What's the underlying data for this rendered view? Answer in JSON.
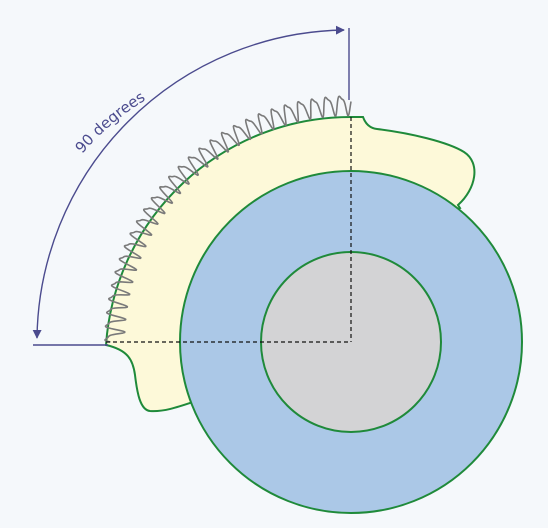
{
  "angle_label": "90 degrees",
  "colors": {
    "background": "#f5f8fb",
    "outline": "#1f8a3a",
    "sector_fill": "#fdf9d9",
    "outer_disc_fill": "#abc8e7",
    "inner_disc_fill": "#d3d3d5",
    "dimension_line": "#4b4b8e",
    "label_text": "#4b4b8e",
    "guide_lines": "#111111",
    "tooth_stroke": "#7a7a7a"
  }
}
